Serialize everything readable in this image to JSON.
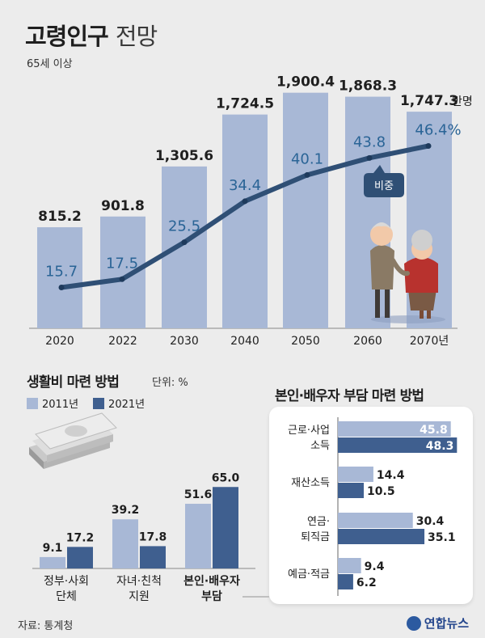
{
  "header": {
    "title_main": "고령인구",
    "title_sub": "전망",
    "subtitle": "65세 이상"
  },
  "colors": {
    "bar_light": "#a8b8d6",
    "bar_dark": "#3f5f8f",
    "line": "#2f4f75",
    "pct_text": "#2a6496",
    "background": "#ececec"
  },
  "chart_data": [
    {
      "type": "bar",
      "categories": [
        "2020",
        "2022",
        "2030",
        "2040",
        "2050",
        "2060",
        "2070년"
      ],
      "series": [
        {
          "values": [
            815.2,
            901.8,
            1305.6,
            1724.5,
            1900.4,
            1868.3,
            1747.3
          ]
        }
      ],
      "value_labels": [
        "815.2",
        "901.8",
        "1,305.6",
        "1,724.5",
        "1,900.4",
        "1,868.3",
        "1,747.3"
      ],
      "unit_label": "만 명",
      "line_series": {
        "name": "비중",
        "values": [
          15.7,
          17.5,
          25.5,
          34.4,
          40.1,
          43.8,
          46.4
        ],
        "labels": [
          "15.7",
          "17.5",
          "25.5",
          "34.4",
          "40.1",
          "43.8",
          "46.4%"
        ]
      }
    },
    {
      "type": "bar",
      "title": "생활비 마련 방법",
      "unit": "단위: %",
      "categories": [
        [
          "정부·사회",
          "단체"
        ],
        [
          "자녀·친척",
          "지원"
        ],
        [
          "본인·배우자",
          "부담"
        ]
      ],
      "series": [
        {
          "name": "2011년",
          "values": [
            9.1,
            39.2,
            51.6
          ]
        },
        {
          "name": "2021년",
          "values": [
            17.2,
            17.8,
            65.0
          ]
        }
      ],
      "value_labels": [
        [
          "9.1",
          "39.2",
          "51.6"
        ],
        [
          "17.2",
          "17.8",
          "65.0"
        ]
      ],
      "ylim": [
        0,
        70
      ]
    },
    {
      "type": "bar",
      "orientation": "horizontal",
      "title": "본인·배우자 부담 마련 방법",
      "categories": [
        [
          "근로·사업",
          "소득"
        ],
        [
          "재산소득"
        ],
        [
          "연금·",
          "퇴직금"
        ],
        [
          "예금·적금"
        ]
      ],
      "series": [
        {
          "name": "2011년",
          "values": [
            45.8,
            14.4,
            30.4,
            9.4
          ]
        },
        {
          "name": "2021년",
          "values": [
            48.3,
            10.5,
            35.1,
            6.2
          ]
        }
      ],
      "value_labels": [
        [
          "45.8",
          "14.4",
          "30.4",
          "9.4"
        ],
        [
          "48.3",
          "10.5",
          "35.1",
          "6.2"
        ]
      ],
      "xlim": [
        0,
        55
      ]
    }
  ],
  "footer": {
    "source": "자료: 통계청",
    "logo": "연합뉴스"
  }
}
